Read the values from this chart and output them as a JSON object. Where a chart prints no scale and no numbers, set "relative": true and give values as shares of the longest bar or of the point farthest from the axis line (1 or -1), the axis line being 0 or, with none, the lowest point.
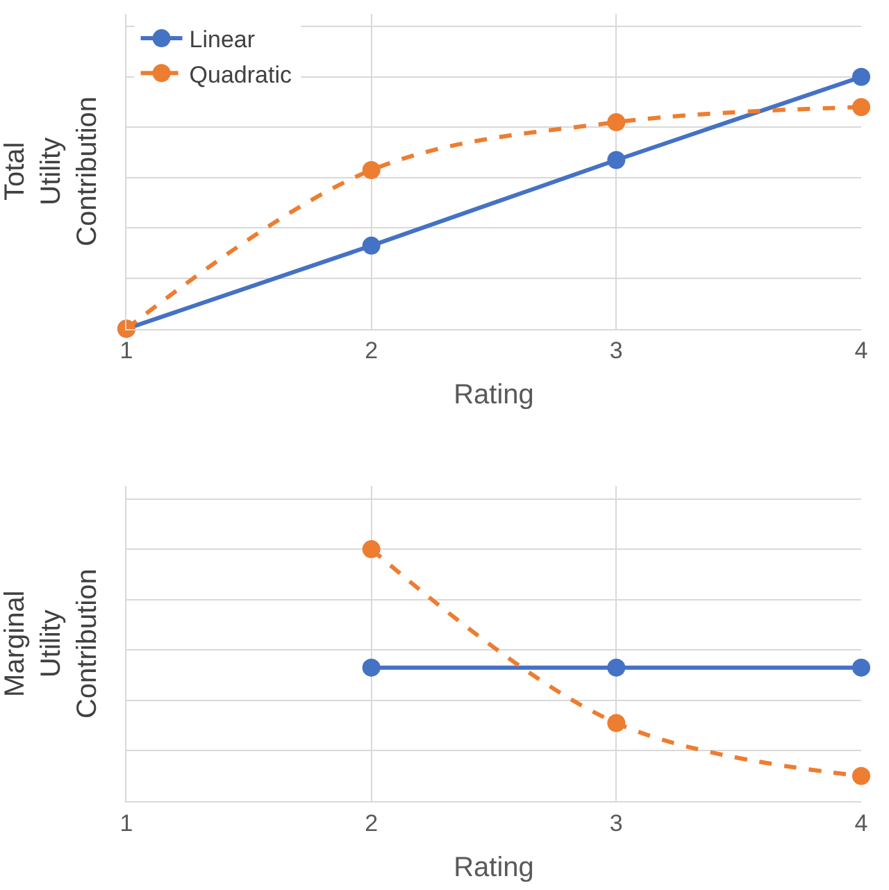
{
  "chart_data": [
    {
      "type": "line",
      "relative": true,
      "x": [
        1,
        2,
        3,
        4
      ],
      "xlim": [
        1,
        4
      ],
      "xticks": [
        1,
        2,
        3,
        4
      ],
      "xlabel": "Rating",
      "ylabel": "Total\nUtility\nContribution",
      "grid": true,
      "legend": "top left",
      "marker": "circle",
      "series": [
        {
          "name": "Linear",
          "color": "#4472c4",
          "line_style": "solid",
          "values": [
            0,
            0.33,
            0.67,
            1
          ]
        },
        {
          "name": "Quadratic",
          "color": "#ed7d31",
          "line_style": "dashed",
          "values": [
            0,
            0.63,
            0.82,
            0.88
          ]
        }
      ]
    },
    {
      "type": "line",
      "relative": true,
      "x": [
        2,
        3,
        4
      ],
      "xlim": [
        1,
        4
      ],
      "xticks": [
        1,
        2,
        3,
        4
      ],
      "xlabel": "Rating",
      "ylabel": "Marginal\nUtility\nContribution",
      "grid": true,
      "legend": false,
      "marker": "circle",
      "series": [
        {
          "color": "#4472c4",
          "line_style": "solid",
          "values": [
            0.53,
            0.53,
            0.53
          ]
        },
        {
          "color": "#ed7d31",
          "line_style": "dashed",
          "values": [
            1,
            0.31,
            0.1
          ]
        }
      ]
    }
  ]
}
